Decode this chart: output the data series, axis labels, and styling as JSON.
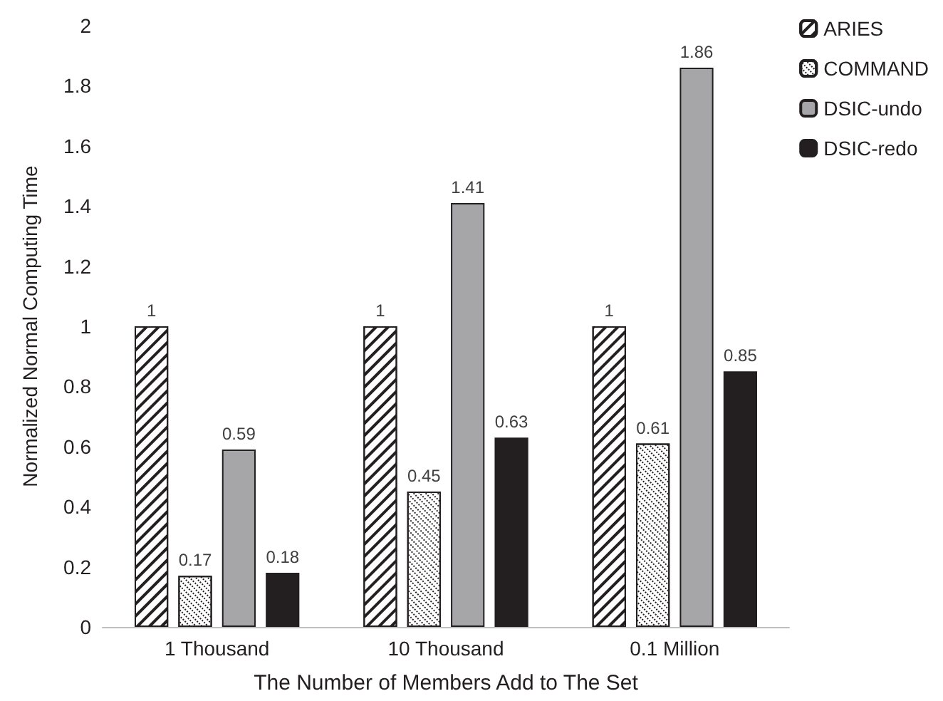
{
  "chart_data": {
    "type": "bar",
    "xlabel": "The Number of Members Add to The Set",
    "ylabel": "Normalized Normal Computing Time",
    "categories": [
      "1 Thousand",
      "10 Thousand",
      "0.1 Million"
    ],
    "series": [
      {
        "name": "ARIES",
        "color": "#ffffff",
        "values": [
          1,
          1,
          1
        ]
      },
      {
        "name": "COMMAND",
        "color": "#ffffff",
        "values": [
          0.17,
          0.45,
          0.61
        ]
      },
      {
        "name": "DSIC-undo",
        "color": "#a6a6a8",
        "values": [
          0.59,
          1.41,
          1.86
        ]
      },
      {
        "name": "DSIC-redo",
        "color": "#231f20",
        "values": [
          0.18,
          0.63,
          0.85
        ]
      }
    ],
    "ylim": [
      0,
      2
    ],
    "yticks": [
      0,
      0.2,
      0.4,
      0.6,
      0.8,
      1,
      1.2,
      1.4,
      1.6,
      1.8,
      2
    ],
    "grid": false,
    "legend": "right",
    "data_labels": true
  }
}
